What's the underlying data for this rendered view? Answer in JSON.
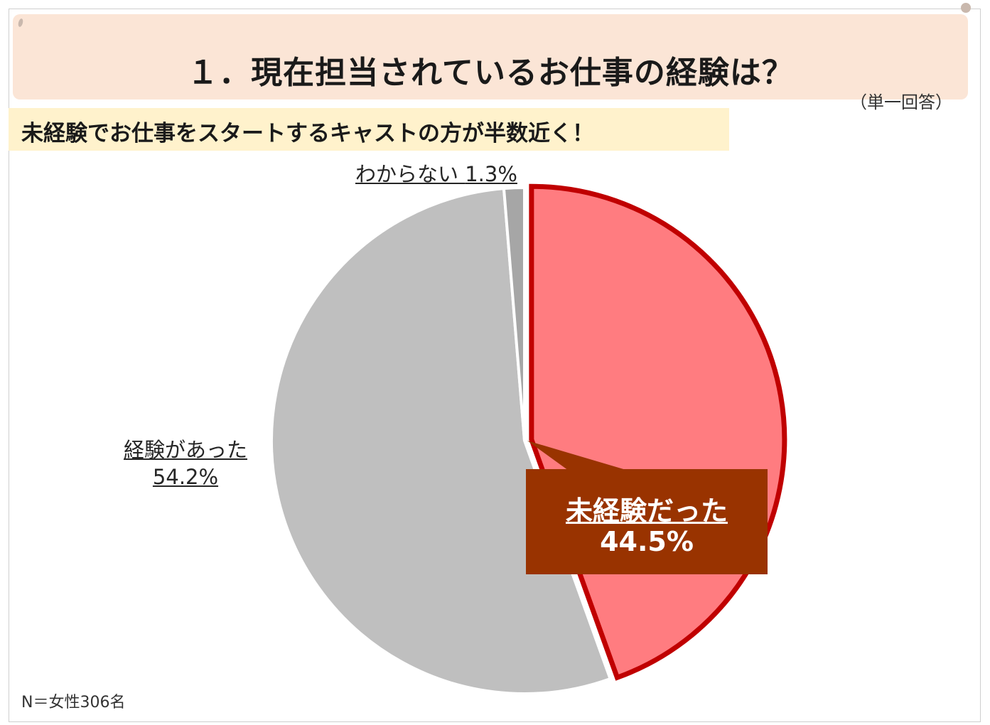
{
  "header": {
    "title": "１．現在担当されているお仕事の経験は？",
    "answer_type": "（単一回答）",
    "headline": "未経験でお仕事をスタートするキャストの方が半数近く！"
  },
  "chart_data": {
    "type": "pie",
    "slices": [
      {
        "label": "未経験だった",
        "value": 44.5,
        "value_label": "44.5%",
        "color": "#ff7c80",
        "stroke": "#c00000",
        "exploded": true,
        "highlighted": true
      },
      {
        "label": "経験があった",
        "value": 54.2,
        "value_label": "54.2%",
        "color": "#bfbfbf"
      },
      {
        "label": "わからない",
        "value": 1.3,
        "value_label": "1.3%",
        "color": "#a6a6a6"
      }
    ],
    "start": "12 o'clock",
    "direction": "clockwise",
    "legend": "none (data labels)"
  },
  "footer": {
    "sample_note": "N＝女性306名"
  },
  "colors": {
    "title_bg": "#fbe5d6",
    "headline_bg": "#fff2cc",
    "callout_bg": "#993300"
  }
}
